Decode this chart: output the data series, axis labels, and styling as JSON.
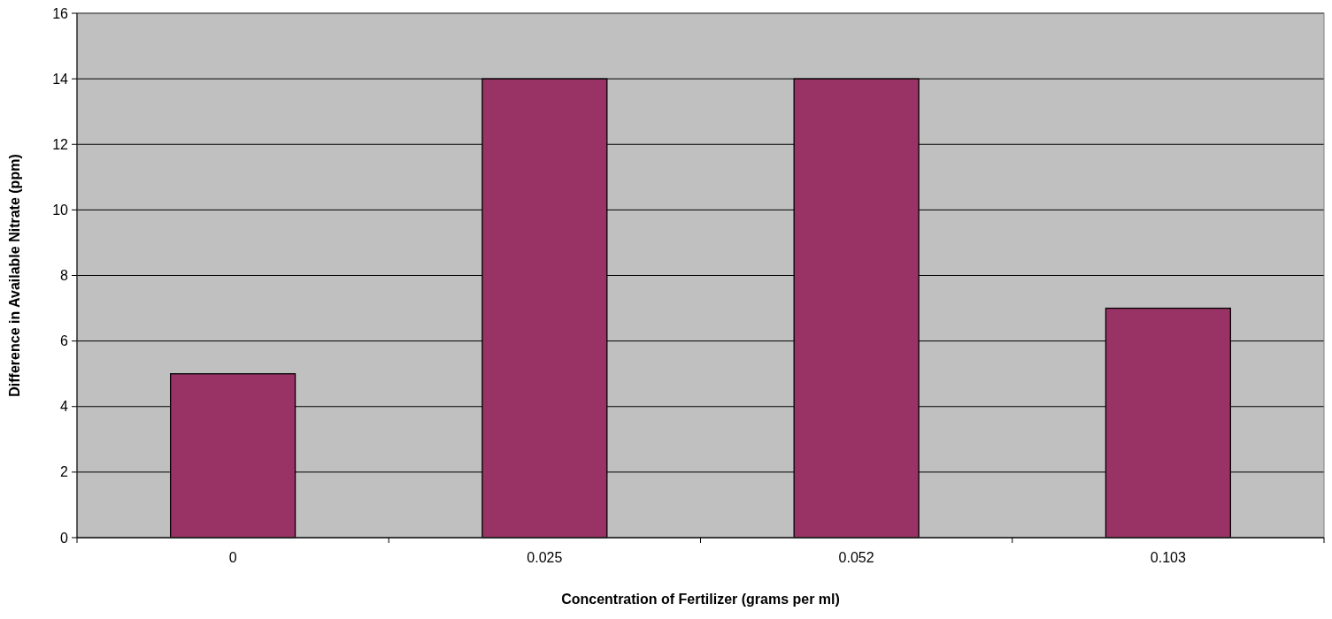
{
  "chart_data": {
    "type": "bar",
    "xlabel": "Concentration of Fertilizer (grams per ml)",
    "ylabel": "Difference in Available Nitrate (ppm)",
    "categories": [
      "0",
      "0.025",
      "0.052",
      "0.103"
    ],
    "values": [
      5,
      14,
      14,
      7
    ],
    "color": "#993366",
    "ylim": [
      0,
      16
    ],
    "yticks": [
      0,
      2,
      4,
      6,
      8,
      10,
      12,
      14,
      16
    ],
    "grid": "y"
  }
}
